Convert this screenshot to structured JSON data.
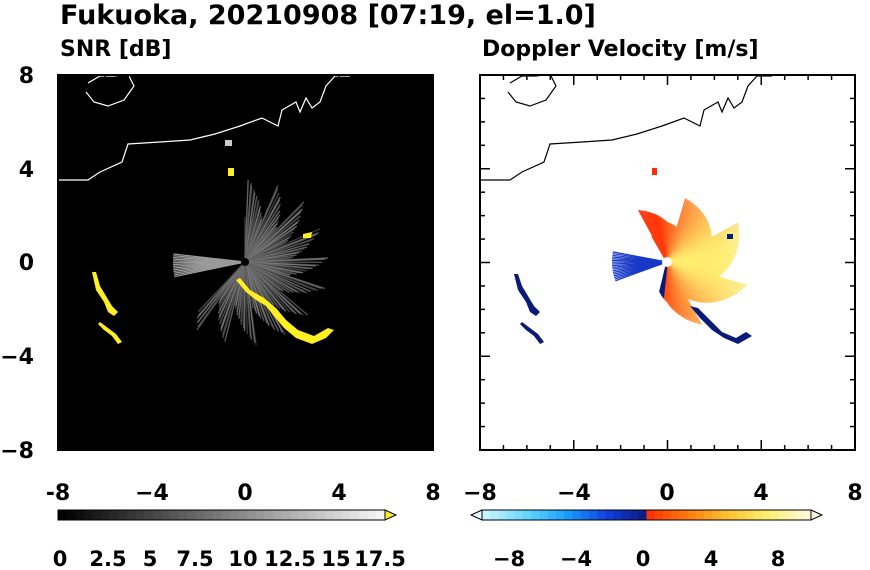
{
  "title": "Fukuoka, 20210908 [07:19, el=1.0]",
  "colors": {
    "echo": "#ffee22",
    "echo_edge": "#dddddd",
    "coast": "#ffffff",
    "coast_on_white": "#000000",
    "negative": "#0a1a78",
    "positive_low": "#ff2a00",
    "positive_high": "#ffee70"
  },
  "chart_data": [
    {
      "type": "heatmap",
      "title": "SNR [dB]",
      "xlim": [
        -8,
        8
      ],
      "ylim": [
        -8,
        8
      ],
      "x_ticks": [
        "-8",
        "−4",
        "0",
        "4",
        "8"
      ],
      "y_ticks": [
        "8",
        "4",
        "0",
        "−4",
        "−8"
      ],
      "grid": false,
      "background": "#000000",
      "colorbar": {
        "labels": [
          "0",
          "2.5",
          "5",
          "7.5",
          "10",
          "12.5",
          "15",
          "17.5"
        ],
        "range": [
          0,
          19
        ],
        "extend": "max"
      }
    },
    {
      "type": "heatmap",
      "title": "Doppler Velocity [m/s]",
      "xlim": [
        -8,
        8
      ],
      "ylim": [
        -8,
        8
      ],
      "x_ticks": [
        "−8",
        "−4",
        "0",
        "4",
        "8"
      ],
      "y_ticks": [
        "8",
        "4",
        "0",
        "−4",
        "−8"
      ],
      "grid": false,
      "background": "#ffffff",
      "colorbar": {
        "labels": [
          "−8",
          "−4",
          "0",
          "4",
          "8"
        ],
        "range": [
          -10,
          10
        ],
        "extend": "both"
      }
    }
  ]
}
